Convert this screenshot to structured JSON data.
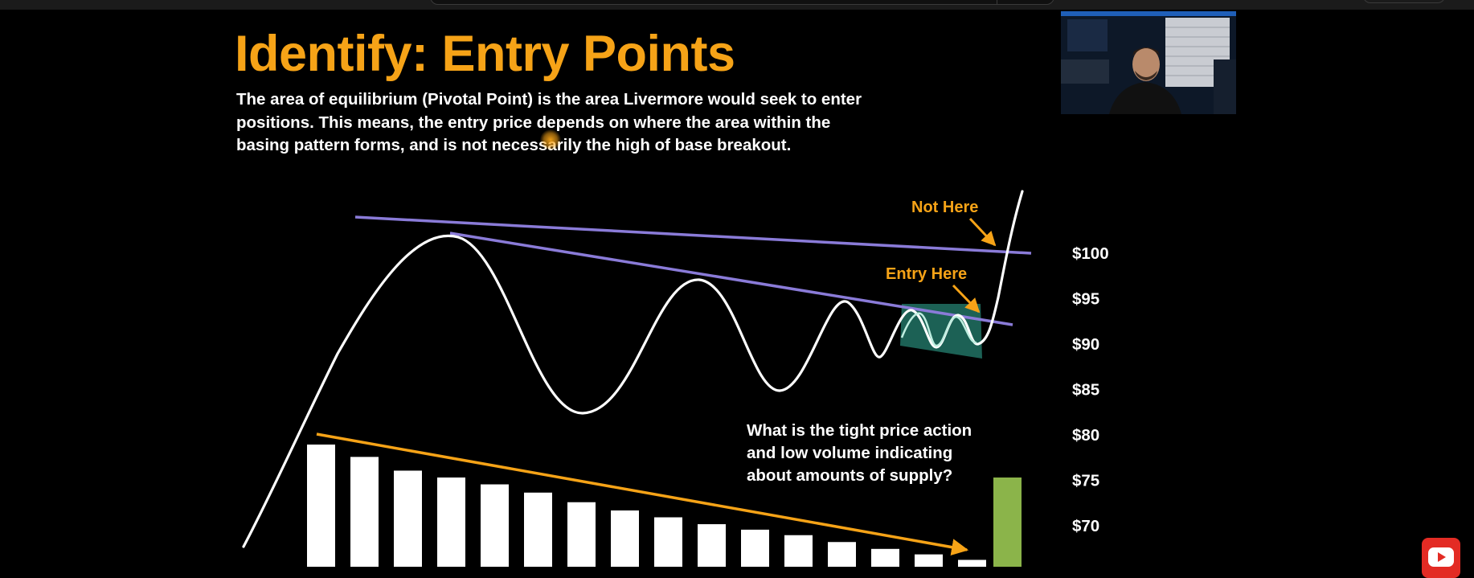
{
  "slide": {
    "title": "Identify: Entry Points",
    "intro": "The area of equilibrium (Pivotal Point) is the area Livermore would seek to enter positions. This means, the entry price depends on where the area within the basing pattern forms, and is not necessarily the high of base breakout."
  },
  "chart_data": {
    "type": "line",
    "title": "",
    "ylabel": "",
    "xlabel": "",
    "y_ticks": [
      "$100",
      "$95",
      "$90",
      "$85",
      "$80",
      "$75",
      "$70"
    ],
    "annotations": {
      "not_here": "Not Here",
      "entry_here": "Entry Here",
      "question": [
        "What is the tight price action",
        "and low volume indicating",
        "about amounts of supply?"
      ]
    },
    "volume_series": {
      "values": [
        89,
        80,
        70,
        65,
        60,
        54,
        47,
        41,
        36,
        31,
        27,
        23,
        18,
        13,
        9,
        5,
        65
      ],
      "last_bar_highlighted": true
    },
    "colors": {
      "title": "#f6a317",
      "annotation": "#f6a317",
      "trendline": "#8a7bd8",
      "price_line": "#ffffff",
      "volume_bar": "#ffffff",
      "breakout_volume_bar": "#8bb44a",
      "entry_zone": "#1f6b5e",
      "volume_trendline": "#f6a317"
    }
  },
  "overlay": {
    "webcam_label": "presenter webcam",
    "youtube_icon": "youtube-icon"
  }
}
